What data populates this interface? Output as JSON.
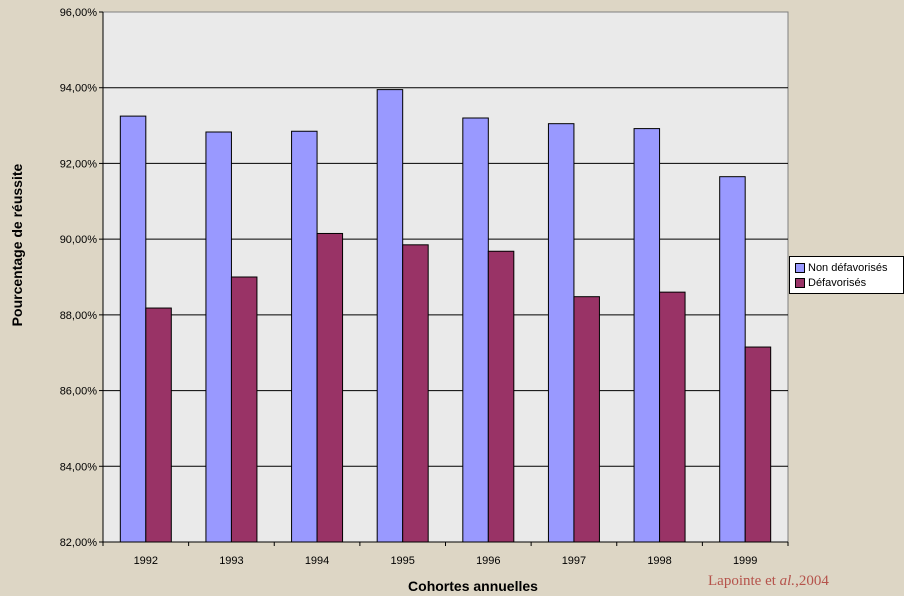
{
  "chart_data": {
    "type": "bar",
    "categories": [
      "1992",
      "1993",
      "1994",
      "1995",
      "1996",
      "1997",
      "1998",
      "1999"
    ],
    "series": [
      {
        "name": "Non défavorisés",
        "color": "#9999ff",
        "values": [
          93.25,
          92.83,
          92.85,
          93.95,
          93.2,
          93.05,
          92.92,
          91.65
        ]
      },
      {
        "name": "Défavorisés",
        "color": "#993366",
        "values": [
          88.18,
          89.0,
          90.15,
          89.85,
          89.68,
          88.48,
          88.6,
          87.15
        ]
      }
    ],
    "ylim": [
      82,
      96
    ],
    "yticks": [
      82,
      84,
      86,
      88,
      90,
      92,
      94,
      96
    ],
    "ytick_labels": [
      "82,00%",
      "84,00%",
      "86,00%",
      "88,00%",
      "90,00%",
      "92,00%",
      "94,00%",
      "96,00%"
    ],
    "xlabel": "Cohortes annuelles",
    "ylabel": "Pourcentage de réussite",
    "grid": true,
    "legend_position": "right"
  },
  "source": {
    "author": "Lapointe et ",
    "etal": "al.",
    "year": ",2004"
  }
}
